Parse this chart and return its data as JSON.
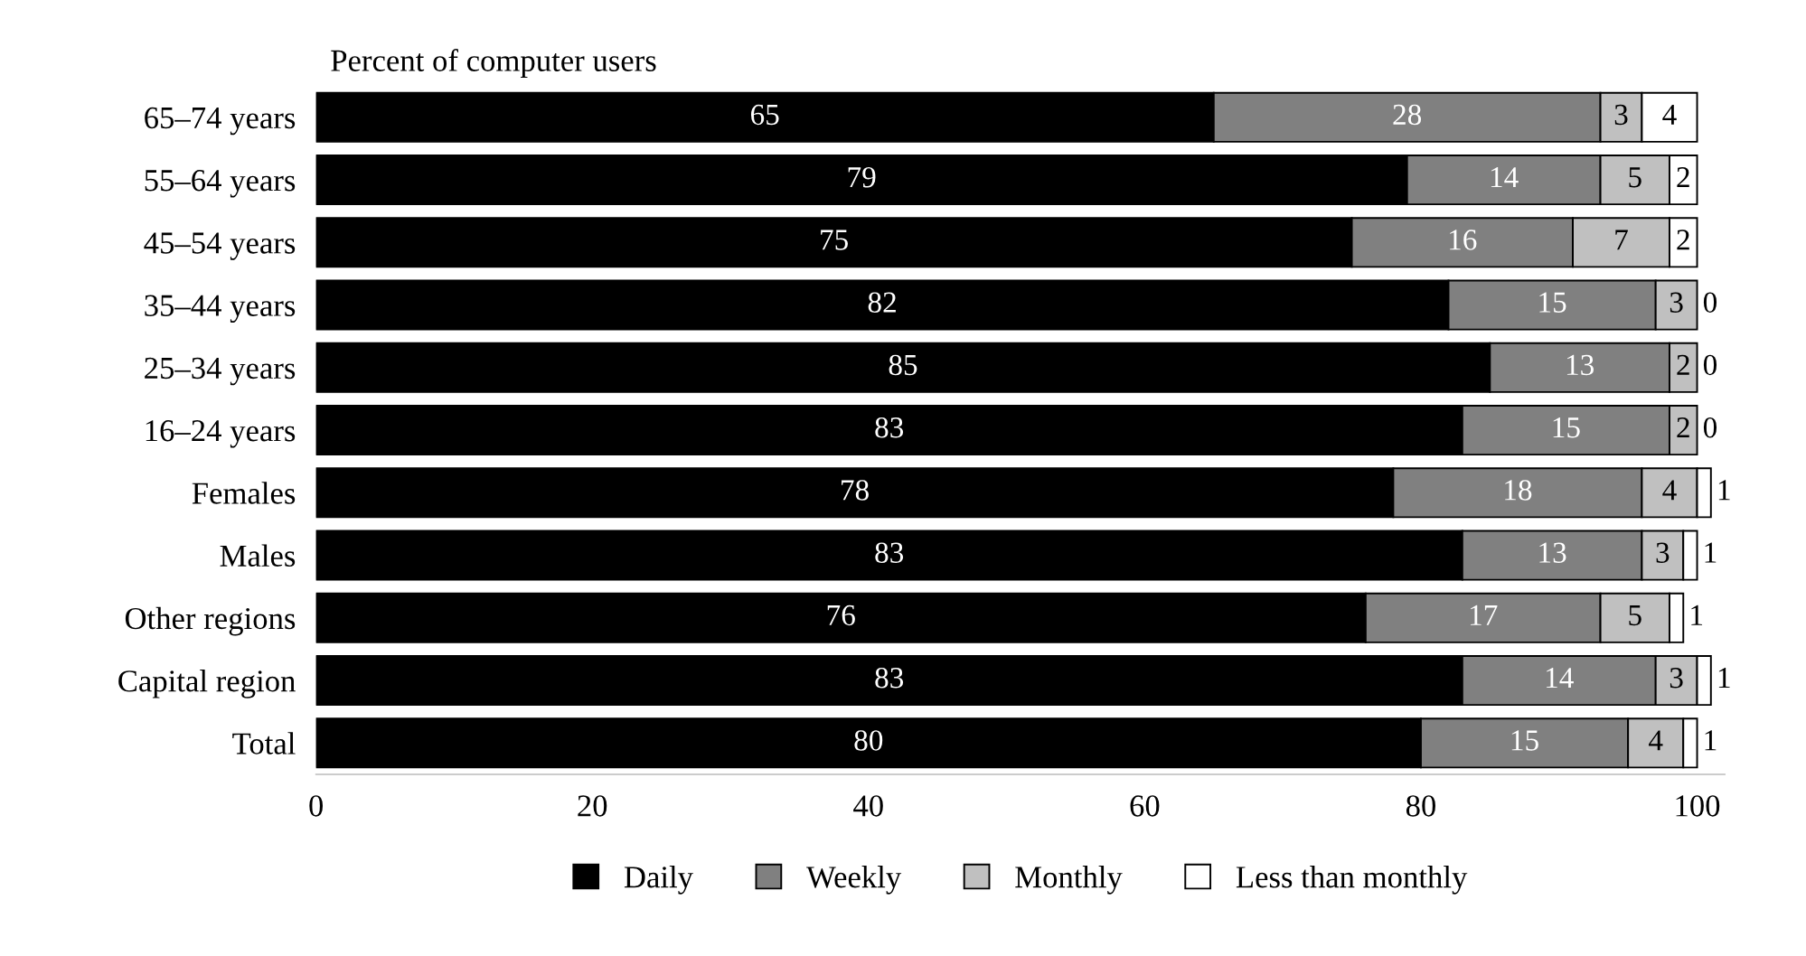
{
  "chart_data": {
    "type": "bar",
    "orientation": "horizontal",
    "stacked": true,
    "title": "Percent of computer users",
    "categories": [
      "65–74 years",
      "55–64 years",
      "45–54 years",
      "35–44 years",
      "25–34 years",
      "16–24 years",
      "Females",
      "Males",
      "Other regions",
      "Capital region",
      "Total"
    ],
    "series": [
      {
        "name": "Daily",
        "color": "#000000",
        "values": [
          65,
          79,
          75,
          82,
          85,
          83,
          78,
          83,
          76,
          83,
          80
        ]
      },
      {
        "name": "Weekly",
        "color": "#808080",
        "values": [
          28,
          14,
          16,
          15,
          13,
          15,
          18,
          13,
          17,
          14,
          15
        ]
      },
      {
        "name": "Monthly",
        "color": "#c0c0c0",
        "values": [
          3,
          5,
          7,
          3,
          2,
          2,
          4,
          3,
          5,
          3,
          4
        ]
      },
      {
        "name": "Less than monthly",
        "color": "#ffffff",
        "values": [
          4,
          2,
          2,
          0,
          0,
          0,
          1,
          1,
          1,
          1,
          1
        ]
      }
    ],
    "xlim": [
      0,
      102
    ],
    "xticks": [
      0,
      20,
      40,
      60,
      80,
      100
    ],
    "grid": false,
    "legend": "bottom",
    "data_labels": true
  }
}
